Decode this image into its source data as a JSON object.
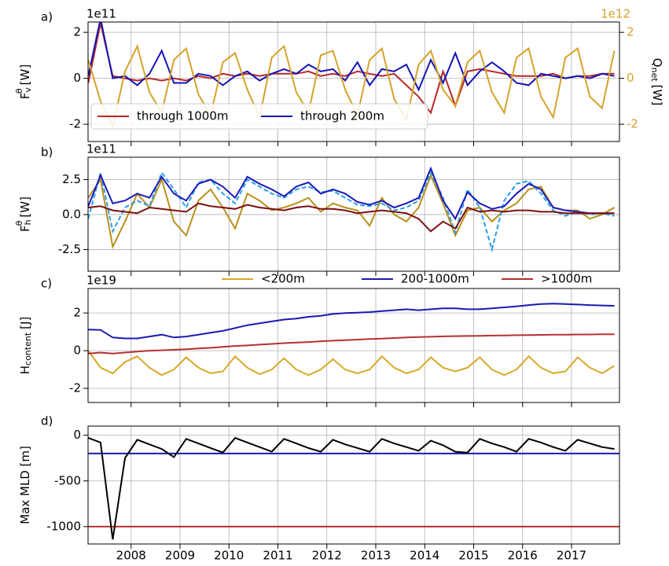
{
  "chart_data": [
    {
      "type": "line",
      "label": "a)",
      "y_offset": "1e11",
      "y2_offset": "1e12",
      "ylabel": {
        "base": "F",
        "sub": "v",
        "sup": "θ",
        "unit": "[W]"
      },
      "y2label": {
        "base": "Q",
        "sub": "net",
        "unit": "[W]"
      },
      "xlim": [
        2007.12,
        2017.98
      ],
      "xticks": [
        2008,
        2009,
        2010,
        2011,
        2012,
        2013,
        2014,
        2015,
        2016,
        2017
      ],
      "ylim": [
        -2.75,
        2.45
      ],
      "yticks": [
        -2,
        0,
        2
      ],
      "y2lim": [
        -2.75,
        2.45
      ],
      "y2ticks": [
        -2,
        0,
        2
      ],
      "grid": true,
      "legend": "lower-left",
      "x": [
        2007.125,
        2007.375,
        2007.625,
        2007.875,
        2008.125,
        2008.375,
        2008.625,
        2008.875,
        2009.125,
        2009.375,
        2009.625,
        2009.875,
        2010.125,
        2010.375,
        2010.625,
        2010.875,
        2011.125,
        2011.375,
        2011.625,
        2011.875,
        2012.125,
        2012.375,
        2012.625,
        2012.875,
        2013.125,
        2013.375,
        2013.625,
        2013.875,
        2014.125,
        2014.375,
        2014.625,
        2014.875,
        2015.125,
        2015.375,
        2015.625,
        2015.875,
        2016.125,
        2016.375,
        2016.625,
        2016.875,
        2017.125,
        2017.375,
        2017.625,
        2017.875
      ],
      "series": [
        {
          "name": "through 1000m",
          "color": "#b5282a",
          "values": [
            -0.2,
            2.4,
            0.1,
            0.0,
            -0.1,
            0.0,
            -0.1,
            0.0,
            -0.1,
            0.1,
            0.0,
            0.2,
            0.1,
            0.2,
            0.1,
            0.2,
            0.2,
            0.2,
            0.3,
            0.1,
            0.2,
            0.1,
            0.3,
            0.2,
            0.1,
            0.2,
            -0.3,
            -0.8,
            -1.5,
            0.3,
            -1.2,
            0.3,
            0.4,
            0.3,
            0.2,
            0.1,
            0.1,
            0.1,
            0.2,
            0.0,
            0.1,
            0.1,
            0.2,
            0.2
          ]
        },
        {
          "name": "through 200m",
          "color": "#1414b4",
          "values": [
            0.1,
            2.6,
            0.0,
            0.1,
            -0.3,
            0.2,
            1.2,
            -0.2,
            -0.2,
            0.2,
            0.1,
            -0.3,
            0.1,
            0.3,
            -0.1,
            0.2,
            0.4,
            0.2,
            0.6,
            0.3,
            0.4,
            -0.1,
            0.7,
            -0.3,
            0.4,
            0.3,
            0.6,
            -0.5,
            0.8,
            -0.2,
            1.1,
            -0.3,
            0.3,
            0.7,
            0.3,
            -0.2,
            -0.3,
            0.2,
            0.1,
            0.0,
            0.1,
            0.0,
            0.2,
            0.1
          ]
        },
        {
          "color": "#d6a22a",
          "axis": "y2",
          "values": [
            0.8,
            -1.0,
            -2.1,
            0.3,
            1.4,
            -0.6,
            -1.5,
            0.8,
            1.3,
            -0.7,
            -1.6,
            0.7,
            1.1,
            -0.5,
            -1.7,
            0.9,
            1.4,
            -0.6,
            -1.5,
            1.0,
            1.2,
            -0.5,
            -1.6,
            0.8,
            1.3,
            -0.9,
            -1.8,
            0.6,
            1.2,
            -0.5,
            -1.2,
            0.7,
            1.2,
            -0.6,
            -1.5,
            0.9,
            1.3,
            -0.8,
            -1.7,
            0.9,
            1.3,
            -0.8,
            -1.3,
            1.2
          ]
        }
      ]
    },
    {
      "type": "line",
      "label": "b)",
      "y_offset": "1e11",
      "ylabel": {
        "base": "F",
        "sub": "h",
        "sup": "θ",
        "unit": "[W]"
      },
      "xlim": [
        2007.12,
        2017.98
      ],
      "xticks": [
        2008,
        2009,
        2010,
        2011,
        2012,
        2013,
        2014,
        2015,
        2016,
        2017
      ],
      "ylim": [
        -4.05,
        4.1
      ],
      "yticks": [
        -2.5,
        {
          "value": 0,
          "label": "0.0"
        },
        2.5
      ],
      "grid": true,
      "x": [
        2007.125,
        2007.375,
        2007.625,
        2007.875,
        2008.125,
        2008.375,
        2008.625,
        2008.875,
        2009.125,
        2009.375,
        2009.625,
        2009.875,
        2010.125,
        2010.375,
        2010.625,
        2010.875,
        2011.125,
        2011.375,
        2011.625,
        2011.875,
        2012.125,
        2012.375,
        2012.625,
        2012.875,
        2013.125,
        2013.375,
        2013.625,
        2013.875,
        2014.125,
        2014.375,
        2014.625,
        2014.875,
        2015.125,
        2015.375,
        2015.625,
        2015.875,
        2016.125,
        2016.375,
        2016.625,
        2016.875,
        2017.125,
        2017.375,
        2017.625,
        2017.875
      ],
      "series": [
        {
          "color": "#b8901a",
          "values": [
            1.2,
            2.5,
            -2.3,
            -0.5,
            1.5,
            0.5,
            2.5,
            -0.5,
            -1.5,
            1.0,
            1.8,
            0.5,
            -1.0,
            1.5,
            1.0,
            0.3,
            0.5,
            0.8,
            1.2,
            0.2,
            0.8,
            0.5,
            0.3,
            -0.8,
            1.2,
            0.0,
            -0.5,
            0.5,
            2.8,
            0.8,
            -1.5,
            0.3,
            0.5,
            -0.5,
            0.3,
            0.8,
            1.8,
            2.0,
            0.5,
            0.3,
            0.3,
            -0.3,
            0.0,
            0.5
          ]
        },
        {
          "color": "#2a9fe8",
          "style": "dashed",
          "values": [
            -0.3,
            3.0,
            -1.2,
            0.5,
            1.0,
            0.6,
            3.0,
            1.8,
            0.5,
            2.3,
            2.5,
            1.5,
            0.8,
            2.5,
            2.0,
            1.5,
            1.2,
            1.8,
            2.0,
            1.6,
            1.7,
            1.2,
            0.7,
            0.6,
            0.8,
            0.3,
            0.5,
            1.0,
            3.0,
            1.2,
            -1.3,
            1.8,
            0.5,
            -2.5,
            1.0,
            2.2,
            2.4,
            1.5,
            0.3,
            -0.1,
            0.2,
            0.0,
            0.1,
            -0.1
          ]
        },
        {
          "color": "#1a1ab8",
          "values": [
            0.6,
            2.8,
            0.8,
            1.0,
            1.5,
            1.2,
            2.7,
            1.5,
            1.0,
            2.2,
            2.5,
            2.0,
            1.2,
            2.7,
            2.2,
            1.8,
            1.3,
            2.0,
            2.3,
            1.5,
            1.8,
            1.5,
            0.9,
            0.7,
            1.0,
            0.5,
            0.8,
            1.2,
            3.3,
            1.0,
            -0.3,
            1.6,
            0.8,
            0.4,
            0.6,
            1.5,
            2.2,
            1.8,
            0.5,
            0.3,
            0.2,
            0.1,
            0.1,
            0.1
          ]
        },
        {
          "color": "#7a1010",
          "values": [
            0.5,
            0.6,
            0.3,
            0.2,
            0.1,
            0.5,
            0.4,
            0.3,
            0.2,
            0.8,
            0.6,
            0.5,
            0.4,
            0.7,
            0.5,
            0.4,
            0.3,
            0.5,
            0.6,
            0.4,
            0.4,
            0.3,
            0.1,
            0.2,
            0.3,
            0.2,
            0.1,
            -0.3,
            -1.2,
            -0.5,
            -1.0,
            0.5,
            0.2,
            0.3,
            0.2,
            0.3,
            0.3,
            0.2,
            0.2,
            0.1,
            0.1,
            0.1,
            0.1,
            0.1
          ]
        }
      ]
    },
    {
      "type": "line",
      "label": "c)",
      "y_offset": "1e19",
      "ylabel": {
        "base": "H",
        "sub": "content",
        "unit": "[J]"
      },
      "xlim": [
        2007.12,
        2017.98
      ],
      "xticks": [
        2008,
        2009,
        2010,
        2011,
        2012,
        2013,
        2014,
        2015,
        2016,
        2017
      ],
      "ylim": [
        -2.75,
        3.3
      ],
      "yticks": [
        -2,
        0,
        2
      ],
      "grid": true,
      "legend": "top",
      "x": [
        2007.125,
        2007.375,
        2007.625,
        2007.875,
        2008.125,
        2008.375,
        2008.625,
        2008.875,
        2009.125,
        2009.375,
        2009.625,
        2009.875,
        2010.125,
        2010.375,
        2010.625,
        2010.875,
        2011.125,
        2011.375,
        2011.625,
        2011.875,
        2012.125,
        2012.375,
        2012.625,
        2012.875,
        2013.125,
        2013.375,
        2013.625,
        2013.875,
        2014.125,
        2014.375,
        2014.625,
        2014.875,
        2015.125,
        2015.375,
        2015.625,
        2015.875,
        2016.125,
        2016.375,
        2016.625,
        2016.875,
        2017.125,
        2017.375,
        2017.625,
        2017.875
      ],
      "series": [
        {
          "name": "<200m",
          "color": "#d8a828",
          "values": [
            0.0,
            -0.9,
            -1.2,
            -0.6,
            -0.3,
            -0.9,
            -1.3,
            -1.0,
            -0.35,
            -0.9,
            -1.2,
            -1.1,
            -0.3,
            -0.9,
            -1.25,
            -1.0,
            -0.4,
            -1.0,
            -1.3,
            -1.0,
            -0.45,
            -1.0,
            -1.2,
            -1.0,
            -0.3,
            -0.9,
            -1.2,
            -1.0,
            -0.35,
            -0.9,
            -1.1,
            -0.9,
            -0.35,
            -1.0,
            -1.3,
            -1.0,
            -0.3,
            -0.9,
            -1.2,
            -1.1,
            -0.35,
            -0.9,
            -1.2,
            -0.8
          ]
        },
        {
          "name": "200-1000m",
          "color": "#1a1ab0",
          "values": [
            1.12,
            1.1,
            0.7,
            0.65,
            0.65,
            0.75,
            0.85,
            0.7,
            0.75,
            0.85,
            0.95,
            1.05,
            1.2,
            1.35,
            1.45,
            1.55,
            1.65,
            1.7,
            1.8,
            1.85,
            1.95,
            2.0,
            2.02,
            2.05,
            2.1,
            2.15,
            2.2,
            2.15,
            2.2,
            2.25,
            2.25,
            2.2,
            2.2,
            2.25,
            2.3,
            2.35,
            2.42,
            2.48,
            2.5,
            2.48,
            2.45,
            2.42,
            2.4,
            2.38
          ]
        },
        {
          "name": ">1000m",
          "color": "#b53030",
          "values": [
            -0.15,
            -0.1,
            -0.15,
            -0.1,
            -0.05,
            0.0,
            0.02,
            0.05,
            0.08,
            0.12,
            0.15,
            0.2,
            0.25,
            0.28,
            0.32,
            0.36,
            0.4,
            0.43,
            0.46,
            0.5,
            0.53,
            0.56,
            0.59,
            0.62,
            0.64,
            0.67,
            0.7,
            0.72,
            0.74,
            0.76,
            0.77,
            0.78,
            0.79,
            0.8,
            0.81,
            0.82,
            0.83,
            0.84,
            0.85,
            0.85,
            0.86,
            0.86,
            0.87,
            0.87
          ]
        }
      ]
    },
    {
      "type": "line",
      "label": "d)",
      "ylabel": {
        "base": "Max MLD [m]"
      },
      "xlim": [
        2007.12,
        2017.98
      ],
      "xticks": [
        2008,
        2009,
        2010,
        2011,
        2012,
        2013,
        2014,
        2015,
        2016,
        2017
      ],
      "ylim": [
        -1190,
        100
      ],
      "yticks": [
        -1000,
        -500,
        0
      ],
      "grid": true,
      "hlines": [
        {
          "value": -200,
          "color": "#1a1ab0"
        },
        {
          "value": -1000,
          "color": "#b53030"
        }
      ],
      "x": [
        2007.125,
        2007.375,
        2007.625,
        2007.875,
        2008.125,
        2008.375,
        2008.625,
        2008.875,
        2009.125,
        2009.375,
        2009.625,
        2009.875,
        2010.125,
        2010.375,
        2010.625,
        2010.875,
        2011.125,
        2011.375,
        2011.625,
        2011.875,
        2012.125,
        2012.375,
        2012.625,
        2012.875,
        2013.125,
        2013.375,
        2013.625,
        2013.875,
        2014.125,
        2014.375,
        2014.625,
        2014.875,
        2015.125,
        2015.375,
        2015.625,
        2015.875,
        2016.125,
        2016.375,
        2016.625,
        2016.875,
        2017.125,
        2017.375,
        2017.625,
        2017.875
      ],
      "series": [
        {
          "color": "#000000",
          "values": [
            -30,
            -80,
            -1140,
            -250,
            -50,
            -100,
            -150,
            -240,
            -40,
            -90,
            -140,
            -190,
            -30,
            -80,
            -130,
            -180,
            -40,
            -90,
            -140,
            -180,
            -50,
            -100,
            -140,
            -180,
            -40,
            -90,
            -130,
            -170,
            -60,
            -110,
            -180,
            -190,
            -40,
            -90,
            -130,
            -180,
            -40,
            -80,
            -130,
            -170,
            -50,
            -90,
            -130,
            -150
          ]
        }
      ]
    }
  ]
}
